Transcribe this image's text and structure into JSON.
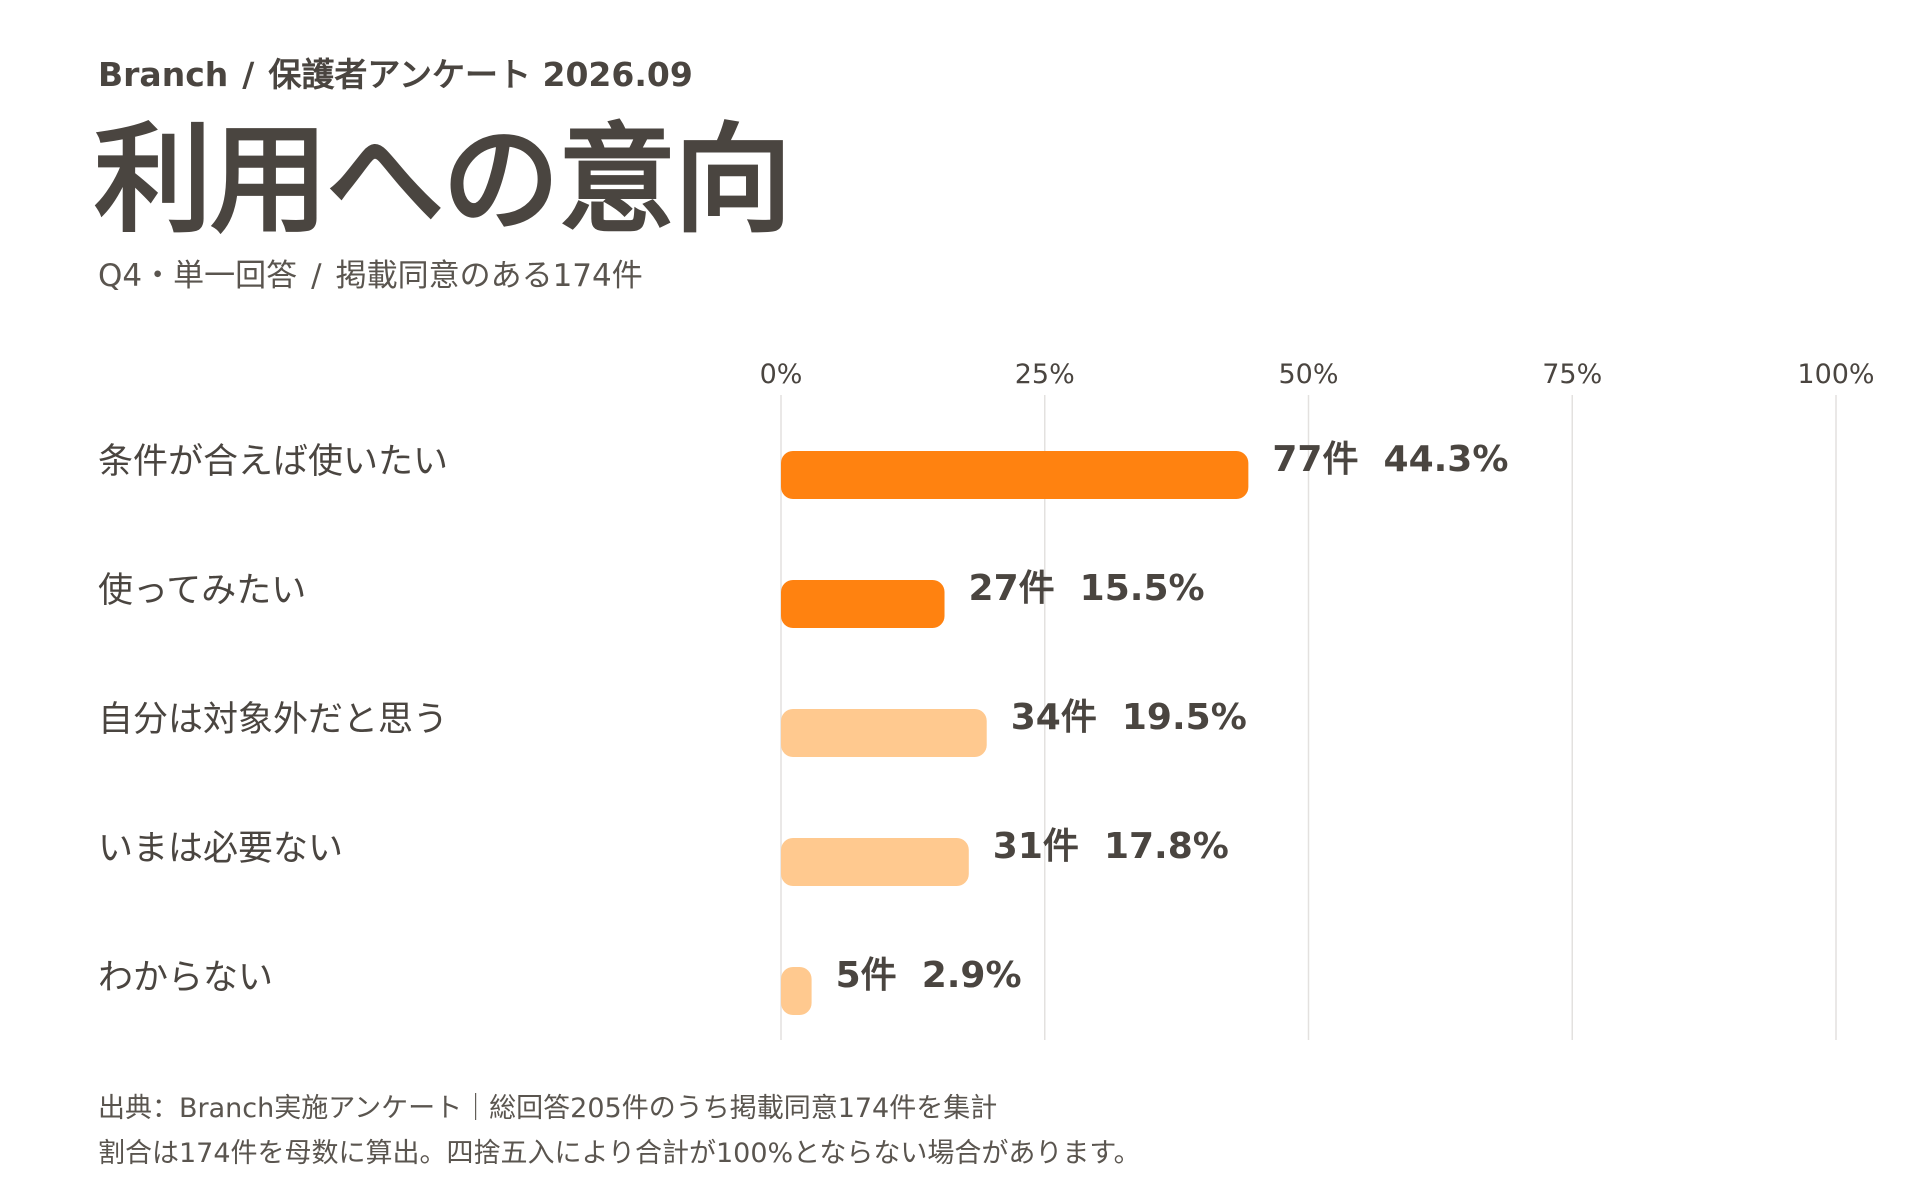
{
  "header": {
    "brand": "Branch",
    "separator": "/",
    "survey": "保護者アンケート 2026.09"
  },
  "title": "利用への意向",
  "subtitle": {
    "question": "Q4・単一回答",
    "separator": "/",
    "base": "掲載同意のある174件"
  },
  "chart_data": {
    "type": "bar",
    "orientation": "horizontal",
    "categories": [
      "条件が合えば使いたい",
      "使ってみたい",
      "自分は対象外だと思う",
      "いまは必要ない",
      "わからない"
    ],
    "counts": [
      77,
      27,
      34,
      31,
      5
    ],
    "values": [
      44.3,
      15.5,
      19.5,
      17.8,
      2.9
    ],
    "value_labels": [
      "77件  44.3%",
      "27件  15.5%",
      "34件  19.5%",
      "31件  17.8%",
      "5件  2.9%"
    ],
    "colors": [
      "#ff8210",
      "#ff8210",
      "#ffc98f",
      "#ffc98f",
      "#ffc98f"
    ],
    "xlim": [
      0,
      100
    ],
    "xticks": [
      0,
      25,
      50,
      75,
      100
    ],
    "xtick_labels": [
      "0%",
      "25%",
      "50%",
      "75%",
      "100%"
    ],
    "grid": true,
    "legend": "none"
  },
  "footer": {
    "line1": "出典：Branch実施アンケート｜総回答205件のうち掲載同意174件を集計",
    "line2": "割合は174件を母数に算出。四捨五入により合計が100%とならない場合があります。"
  }
}
